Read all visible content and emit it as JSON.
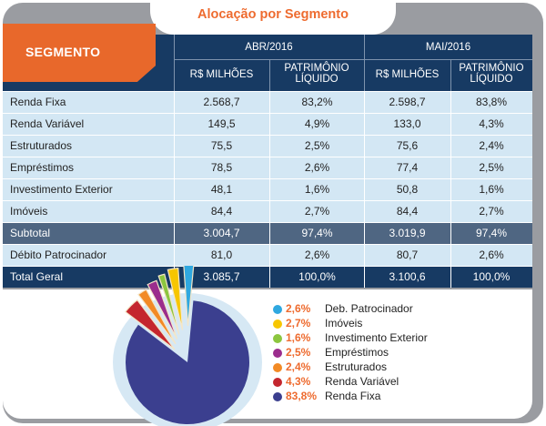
{
  "title": "Alocação por Segmento",
  "header": {
    "segment_label": "SEGMENTO",
    "period1": "ABR/2016",
    "period2": "MAI/2016",
    "col_millions": "R$ MILHÕES",
    "col_patrimonio_line1": "PATRIMÔNIO",
    "col_patrimonio_line2": "LÍQUIDO"
  },
  "rows": [
    {
      "label": "Renda Fixa",
      "abr_val": "2.568,7",
      "abr_pct": "83,2%",
      "mai_val": "2.598,7",
      "mai_pct": "83,8%",
      "style": "light"
    },
    {
      "label": "Renda Variável",
      "abr_val": "149,5",
      "abr_pct": "4,9%",
      "mai_val": "133,0",
      "mai_pct": "4,3%",
      "style": "light"
    },
    {
      "label": "Estruturados",
      "abr_val": "75,5",
      "abr_pct": "2,5%",
      "mai_val": "75,6",
      "mai_pct": "2,4%",
      "style": "light"
    },
    {
      "label": "Empréstimos",
      "abr_val": "78,5",
      "abr_pct": "2,6%",
      "mai_val": "77,4",
      "mai_pct": "2,5%",
      "style": "light"
    },
    {
      "label": "Investimento Exterior",
      "abr_val": "48,1",
      "abr_pct": "1,6%",
      "mai_val": "50,8",
      "mai_pct": "1,6%",
      "style": "light"
    },
    {
      "label": "Imóveis",
      "abr_val": "84,4",
      "abr_pct": "2,7%",
      "mai_val": "84,4",
      "mai_pct": "2,7%",
      "style": "light"
    },
    {
      "label": "Subtotal",
      "abr_val": "3.004,7",
      "abr_pct": "97,4%",
      "mai_val": "3.019,9",
      "mai_pct": "97,4%",
      "style": "dark"
    },
    {
      "label": "Débito Patrocinador",
      "abr_val": "81,0",
      "abr_pct": "2,6%",
      "mai_val": "80,7",
      "mai_pct": "2,6%",
      "style": "light"
    },
    {
      "label": "Total Geral",
      "abr_val": "3.085,7",
      "abr_pct": "100,0%",
      "mai_val": "3.100,6",
      "mai_pct": "100,0%",
      "style": "navy"
    }
  ],
  "chart_data": {
    "type": "pie",
    "slices": [
      {
        "name": "Renda Fixa",
        "value": 83.8,
        "label": "83,8%",
        "color": "#3b3f8f"
      },
      {
        "name": "Renda Variável",
        "value": 4.3,
        "label": "4,3%",
        "color": "#c4262e"
      },
      {
        "name": "Estruturados",
        "value": 2.4,
        "label": "2,4%",
        "color": "#f28a25"
      },
      {
        "name": "Empréstimos",
        "value": 2.5,
        "label": "2,5%",
        "color": "#9b2d8d"
      },
      {
        "name": "Investimento Exterior",
        "value": 1.6,
        "label": "1,6%",
        "color": "#8cc63f"
      },
      {
        "name": "Imóveis",
        "value": 2.7,
        "label": "2,7%",
        "color": "#f7c600"
      },
      {
        "name": "Deb. Patrocinador",
        "value": 2.6,
        "label": "2,6%",
        "color": "#2fa8e0"
      }
    ],
    "legend_order": [
      "Deb. Patrocinador",
      "Imóveis",
      "Investimento Exterior",
      "Empréstimos",
      "Estruturados",
      "Renda Variável",
      "Renda Fixa"
    ]
  }
}
